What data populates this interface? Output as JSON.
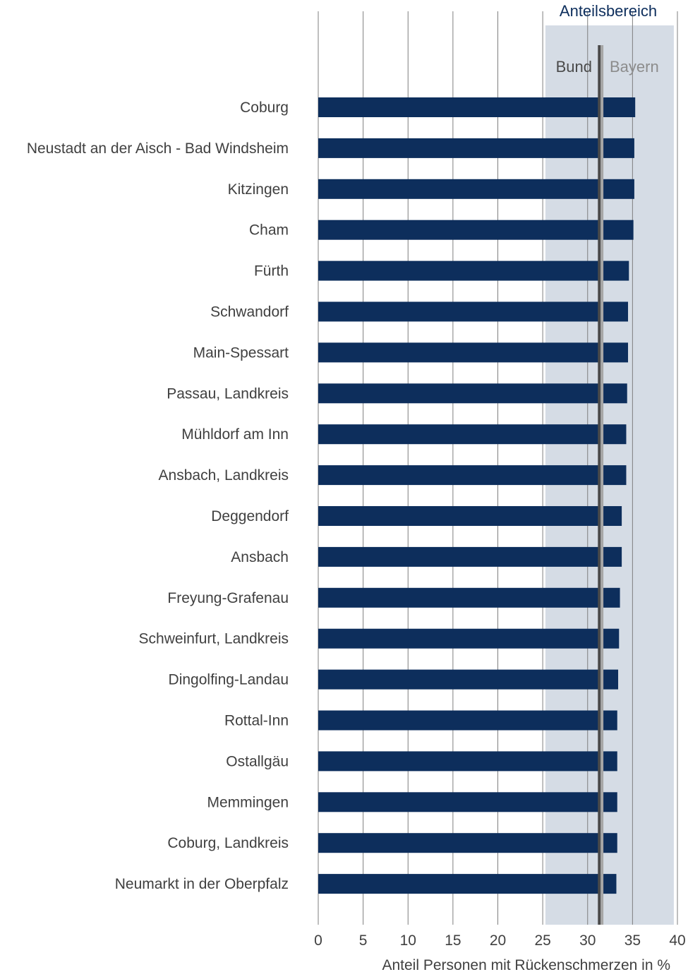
{
  "chart_data": {
    "type": "bar",
    "orientation": "horizontal",
    "categories": [
      "Coburg",
      "Neustadt an der Aisch - Bad Windsheim",
      "Kitzingen",
      "Cham",
      "Fürth",
      "Schwandorf",
      "Main-Spessart",
      "Passau, Landkreis",
      "Mühldorf am Inn",
      "Ansbach, Landkreis",
      "Deggendorf",
      "Ansbach",
      "Freyung-Grafenau",
      "Schweinfurt, Landkreis",
      "Dingolfing-Landau",
      "Rottal-Inn",
      "Ostallgäu",
      "Memmingen",
      "Coburg, Landkreis",
      "Neumarkt in der Oberpfalz"
    ],
    "values": [
      35.3,
      35.2,
      35.2,
      35.1,
      34.6,
      34.5,
      34.5,
      34.4,
      34.3,
      34.3,
      33.8,
      33.8,
      33.6,
      33.5,
      33.4,
      33.3,
      33.3,
      33.3,
      33.3,
      33.2
    ],
    "xlabel": "Anteil Personen mit Rückenschmerzen in %",
    "xlim": [
      0,
      40
    ],
    "xticks": [
      "0",
      "5",
      "10",
      "15",
      "20",
      "25",
      "30",
      "35",
      "40"
    ],
    "grid": true,
    "range_band": {
      "label": "Anteilsbereich",
      "from": 25.3,
      "to": 39.6
    },
    "reference_lines": [
      {
        "label": "Bund",
        "value": 31.3
      },
      {
        "label": "Bayern",
        "value": 31.6
      }
    ],
    "colors": {
      "bar": "#0d2e5c",
      "band": "#d5dce5",
      "bund_line": "#4a4a4a",
      "bayern_line": "#a6a6a6",
      "grid": "#7f7f7f"
    }
  }
}
